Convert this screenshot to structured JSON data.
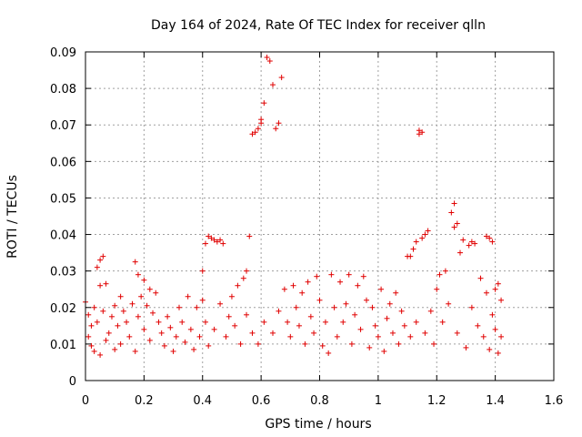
{
  "chart_data": {
    "type": "scatter",
    "title": "Day 164 of 2024, Rate Of TEC Index for receiver qlln",
    "xlabel": "GPS time / hours",
    "ylabel": "ROTI / TECUs",
    "xlim": [
      0,
      1.6
    ],
    "ylim": [
      0,
      0.09
    ],
    "xticks": [
      0,
      0.2,
      0.4,
      0.6,
      0.8,
      1,
      1.2,
      1.4,
      1.6
    ],
    "xtick_labels": [
      "0",
      "0.2",
      "0.4",
      "0.6",
      "0.8",
      "1",
      "1.2",
      "1.4",
      "1.6"
    ],
    "yticks": [
      0,
      0.01,
      0.02,
      0.03,
      0.04,
      0.05,
      0.06,
      0.07,
      0.08,
      0.09
    ],
    "ytick_labels": [
      "0",
      "0.01",
      "0.02",
      "0.03",
      "0.04",
      "0.05",
      "0.06",
      "0.07",
      "0.08",
      "0.09"
    ],
    "grid": true,
    "marker": "+",
    "color": "#e00000",
    "series": [
      {
        "name": "ROTI",
        "points": [
          [
            0.0,
            0.0215
          ],
          [
            0.01,
            0.018
          ],
          [
            0.01,
            0.012
          ],
          [
            0.02,
            0.015
          ],
          [
            0.02,
            0.0095
          ],
          [
            0.03,
            0.02
          ],
          [
            0.03,
            0.008
          ],
          [
            0.04,
            0.031
          ],
          [
            0.04,
            0.016
          ],
          [
            0.05,
            0.033
          ],
          [
            0.05,
            0.026
          ],
          [
            0.05,
            0.007
          ],
          [
            0.06,
            0.034
          ],
          [
            0.06,
            0.019
          ],
          [
            0.07,
            0.0265
          ],
          [
            0.07,
            0.011
          ],
          [
            0.08,
            0.013
          ],
          [
            0.09,
            0.0175
          ],
          [
            0.1,
            0.0205
          ],
          [
            0.1,
            0.0085
          ],
          [
            0.11,
            0.015
          ],
          [
            0.12,
            0.023
          ],
          [
            0.12,
            0.01
          ],
          [
            0.13,
            0.019
          ],
          [
            0.14,
            0.016
          ],
          [
            0.15,
            0.012
          ],
          [
            0.16,
            0.021
          ],
          [
            0.17,
            0.0325
          ],
          [
            0.17,
            0.008
          ],
          [
            0.18,
            0.029
          ],
          [
            0.18,
            0.0175
          ],
          [
            0.19,
            0.023
          ],
          [
            0.2,
            0.0275
          ],
          [
            0.2,
            0.014
          ],
          [
            0.21,
            0.0205
          ],
          [
            0.22,
            0.025
          ],
          [
            0.22,
            0.011
          ],
          [
            0.23,
            0.0185
          ],
          [
            0.24,
            0.024
          ],
          [
            0.25,
            0.016
          ],
          [
            0.26,
            0.013
          ],
          [
            0.27,
            0.0095
          ],
          [
            0.28,
            0.0175
          ],
          [
            0.29,
            0.0145
          ],
          [
            0.3,
            0.008
          ],
          [
            0.31,
            0.012
          ],
          [
            0.32,
            0.02
          ],
          [
            0.33,
            0.016
          ],
          [
            0.34,
            0.0105
          ],
          [
            0.35,
            0.023
          ],
          [
            0.36,
            0.014
          ],
          [
            0.37,
            0.0085
          ],
          [
            0.38,
            0.02
          ],
          [
            0.39,
            0.012
          ],
          [
            0.4,
            0.022
          ],
          [
            0.4,
            0.03
          ],
          [
            0.41,
            0.0375
          ],
          [
            0.41,
            0.016
          ],
          [
            0.42,
            0.0395
          ],
          [
            0.42,
            0.0095
          ],
          [
            0.43,
            0.039
          ],
          [
            0.44,
            0.0385
          ],
          [
            0.44,
            0.014
          ],
          [
            0.45,
            0.038
          ],
          [
            0.46,
            0.0385
          ],
          [
            0.46,
            0.021
          ],
          [
            0.47,
            0.0375
          ],
          [
            0.48,
            0.012
          ],
          [
            0.49,
            0.0175
          ],
          [
            0.5,
            0.023
          ],
          [
            0.51,
            0.015
          ],
          [
            0.52,
            0.026
          ],
          [
            0.53,
            0.01
          ],
          [
            0.54,
            0.028
          ],
          [
            0.55,
            0.03
          ],
          [
            0.55,
            0.018
          ],
          [
            0.56,
            0.0395
          ],
          [
            0.57,
            0.0675
          ],
          [
            0.57,
            0.013
          ],
          [
            0.58,
            0.068
          ],
          [
            0.59,
            0.069
          ],
          [
            0.59,
            0.01
          ],
          [
            0.6,
            0.0715
          ],
          [
            0.6,
            0.0705
          ],
          [
            0.61,
            0.076
          ],
          [
            0.61,
            0.016
          ],
          [
            0.62,
            0.0885
          ],
          [
            0.63,
            0.0875
          ],
          [
            0.64,
            0.081
          ],
          [
            0.64,
            0.013
          ],
          [
            0.65,
            0.069
          ],
          [
            0.66,
            0.0705
          ],
          [
            0.66,
            0.019
          ],
          [
            0.67,
            0.083
          ],
          [
            0.68,
            0.025
          ],
          [
            0.69,
            0.016
          ],
          [
            0.7,
            0.012
          ],
          [
            0.71,
            0.026
          ],
          [
            0.72,
            0.02
          ],
          [
            0.73,
            0.015
          ],
          [
            0.74,
            0.024
          ],
          [
            0.75,
            0.01
          ],
          [
            0.76,
            0.027
          ],
          [
            0.77,
            0.0175
          ],
          [
            0.78,
            0.013
          ],
          [
            0.79,
            0.0285
          ],
          [
            0.8,
            0.022
          ],
          [
            0.81,
            0.0095
          ],
          [
            0.82,
            0.016
          ],
          [
            0.83,
            0.0075
          ],
          [
            0.84,
            0.029
          ],
          [
            0.85,
            0.02
          ],
          [
            0.86,
            0.012
          ],
          [
            0.87,
            0.027
          ],
          [
            0.88,
            0.016
          ],
          [
            0.89,
            0.021
          ],
          [
            0.9,
            0.029
          ],
          [
            0.91,
            0.01
          ],
          [
            0.92,
            0.018
          ],
          [
            0.93,
            0.026
          ],
          [
            0.94,
            0.014
          ],
          [
            0.95,
            0.0285
          ],
          [
            0.96,
            0.022
          ],
          [
            0.97,
            0.009
          ],
          [
            0.98,
            0.02
          ],
          [
            0.99,
            0.015
          ],
          [
            1.0,
            0.012
          ],
          [
            1.01,
            0.025
          ],
          [
            1.02,
            0.008
          ],
          [
            1.03,
            0.017
          ],
          [
            1.04,
            0.021
          ],
          [
            1.05,
            0.013
          ],
          [
            1.06,
            0.024
          ],
          [
            1.07,
            0.01
          ],
          [
            1.08,
            0.019
          ],
          [
            1.09,
            0.015
          ],
          [
            1.1,
            0.034
          ],
          [
            1.11,
            0.034
          ],
          [
            1.11,
            0.012
          ],
          [
            1.12,
            0.036
          ],
          [
            1.13,
            0.038
          ],
          [
            1.13,
            0.016
          ],
          [
            1.14,
            0.0675
          ],
          [
            1.14,
            0.0685
          ],
          [
            1.15,
            0.068
          ],
          [
            1.15,
            0.039
          ],
          [
            1.16,
            0.04
          ],
          [
            1.16,
            0.013
          ],
          [
            1.17,
            0.041
          ],
          [
            1.18,
            0.019
          ],
          [
            1.19,
            0.01
          ],
          [
            1.2,
            0.025
          ],
          [
            1.21,
            0.029
          ],
          [
            1.22,
            0.016
          ],
          [
            1.23,
            0.03
          ],
          [
            1.24,
            0.021
          ],
          [
            1.25,
            0.046
          ],
          [
            1.26,
            0.0485
          ],
          [
            1.26,
            0.042
          ],
          [
            1.27,
            0.043
          ],
          [
            1.27,
            0.013
          ],
          [
            1.28,
            0.035
          ],
          [
            1.29,
            0.0385
          ],
          [
            1.3,
            0.009
          ],
          [
            1.31,
            0.037
          ],
          [
            1.32,
            0.038
          ],
          [
            1.32,
            0.02
          ],
          [
            1.33,
            0.0375
          ],
          [
            1.34,
            0.015
          ],
          [
            1.35,
            0.028
          ],
          [
            1.36,
            0.012
          ],
          [
            1.37,
            0.0395
          ],
          [
            1.37,
            0.024
          ],
          [
            1.38,
            0.039
          ],
          [
            1.38,
            0.0085
          ],
          [
            1.39,
            0.038
          ],
          [
            1.39,
            0.018
          ],
          [
            1.4,
            0.025
          ],
          [
            1.4,
            0.014
          ],
          [
            1.41,
            0.0265
          ],
          [
            1.41,
            0.0075
          ],
          [
            1.42,
            0.022
          ],
          [
            1.42,
            0.012
          ]
        ]
      }
    ]
  }
}
